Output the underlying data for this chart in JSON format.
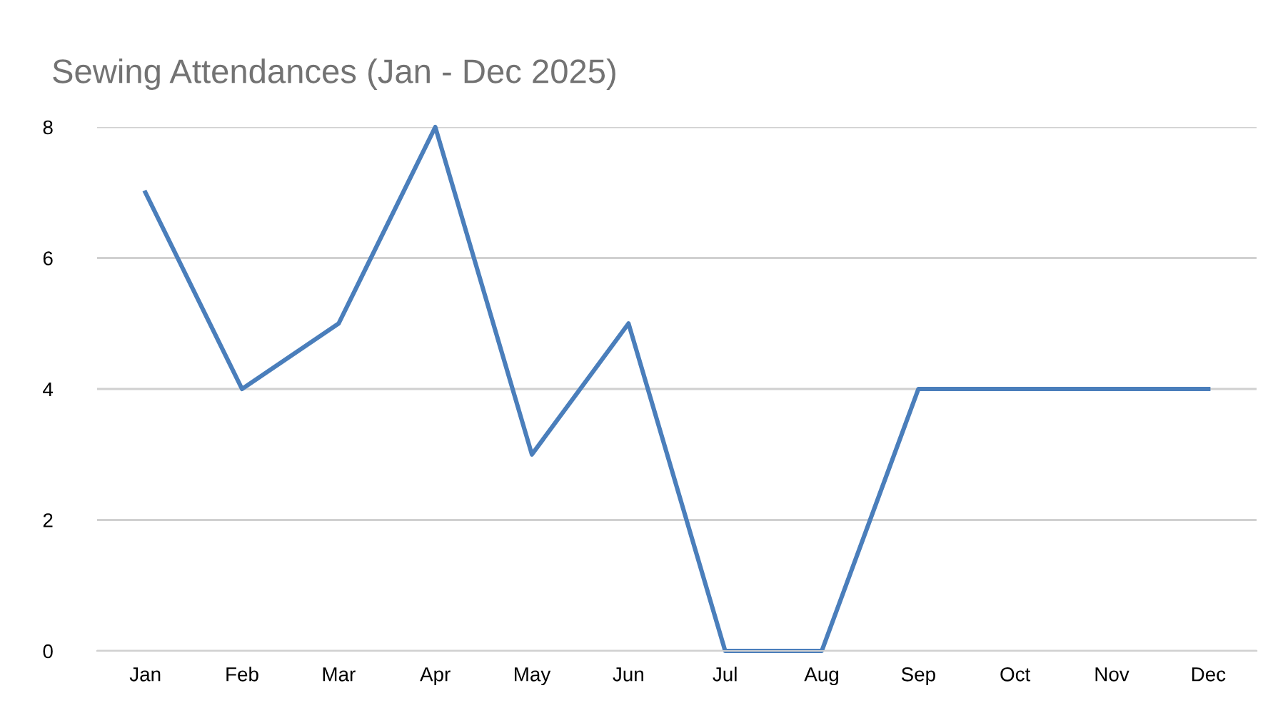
{
  "chart_data": {
    "type": "line",
    "title": "Sewing Attendances (Jan - Dec 2025)",
    "categories": [
      "Jan",
      "Feb",
      "Mar",
      "Apr",
      "May",
      "Jun",
      "Jul",
      "Aug",
      "Sep",
      "Oct",
      "Nov",
      "Dec"
    ],
    "series": [
      {
        "color": "#4a7ebb",
        "values": [
          7,
          4,
          5,
          8,
          3,
          5,
          0,
          0,
          4,
          4,
          4,
          4
        ]
      }
    ],
    "ylim": [
      0,
      8
    ],
    "yticks": [
      0,
      2,
      4,
      6,
      8
    ],
    "grid": "y",
    "marker": "none",
    "line_style": "solid"
  }
}
